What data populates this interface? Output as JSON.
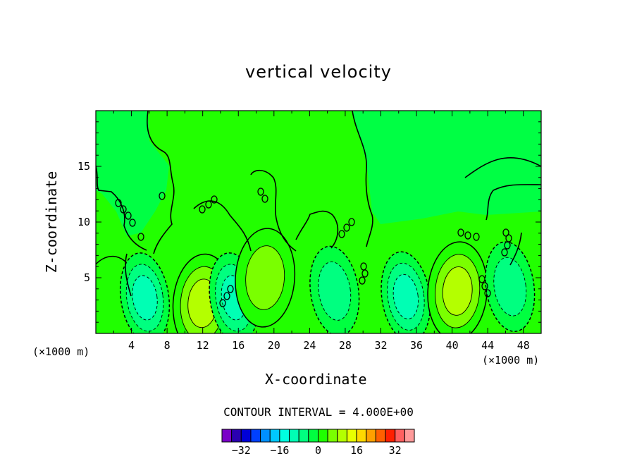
{
  "chart_data": {
    "type": "heatmap",
    "title": "vertical velocity",
    "xlabel": "X-coordinate",
    "ylabel": "Z-coordinate",
    "x_unit_left": "(×1000 m)",
    "x_unit_right": "(×1000 m)",
    "x_ticks": [
      "4",
      "8",
      "12",
      "16",
      "20",
      "24",
      "28",
      "32",
      "36",
      "40",
      "44",
      "48"
    ],
    "x_tick_values": [
      4,
      8,
      12,
      16,
      20,
      24,
      28,
      32,
      36,
      40,
      44,
      48
    ],
    "xlim": [
      0,
      50
    ],
    "y_ticks": [
      "5",
      "10",
      "15"
    ],
    "y_tick_values": [
      5,
      10,
      15
    ],
    "ylim": [
      0,
      20
    ],
    "contour_interval": "CONTOUR INTERVAL = 4.000E+00",
    "colorbar": {
      "labels": [
        "−32",
        "−16",
        "0",
        "16",
        "32"
      ],
      "label_values": [
        -32,
        -16,
        0,
        16,
        32
      ],
      "range": [
        -40,
        40
      ],
      "step": 4,
      "colors": [
        "#7a00c8",
        "#2a00b0",
        "#0000d8",
        "#0040ff",
        "#0090ff",
        "#00c8ff",
        "#00ffe0",
        "#00ffb4",
        "#00ff80",
        "#00ff40",
        "#20ff00",
        "#7aff00",
        "#b4ff00",
        "#e8ff00",
        "#ffd800",
        "#ffa000",
        "#ff6000",
        "#ff2000",
        "#ff6060",
        "#ff9a9a"
      ]
    },
    "background_color": "#22ff00",
    "features": [
      {
        "sign": "pos",
        "x": 1.6,
        "z": 2.5,
        "amp": 4.5
      },
      {
        "sign": "neg",
        "x": 5.5,
        "z": 3.2,
        "amp": -13
      },
      {
        "sign": "pos",
        "x": 12,
        "z": 2.7,
        "amp": 14
      },
      {
        "sign": "neg",
        "x": 15.5,
        "z": 3.2,
        "amp": -14
      },
      {
        "sign": "pos",
        "x": 19,
        "z": 5.0,
        "amp": 11
      },
      {
        "sign": "neg",
        "x": 26.8,
        "z": 3.8,
        "amp": -9
      },
      {
        "sign": "neg",
        "x": 34.8,
        "z": 3.3,
        "amp": -14
      },
      {
        "sign": "pos",
        "x": 40.6,
        "z": 3.8,
        "amp": 12
      },
      {
        "sign": "neg",
        "x": 46.5,
        "z": 4.2,
        "amp": -10
      }
    ]
  }
}
